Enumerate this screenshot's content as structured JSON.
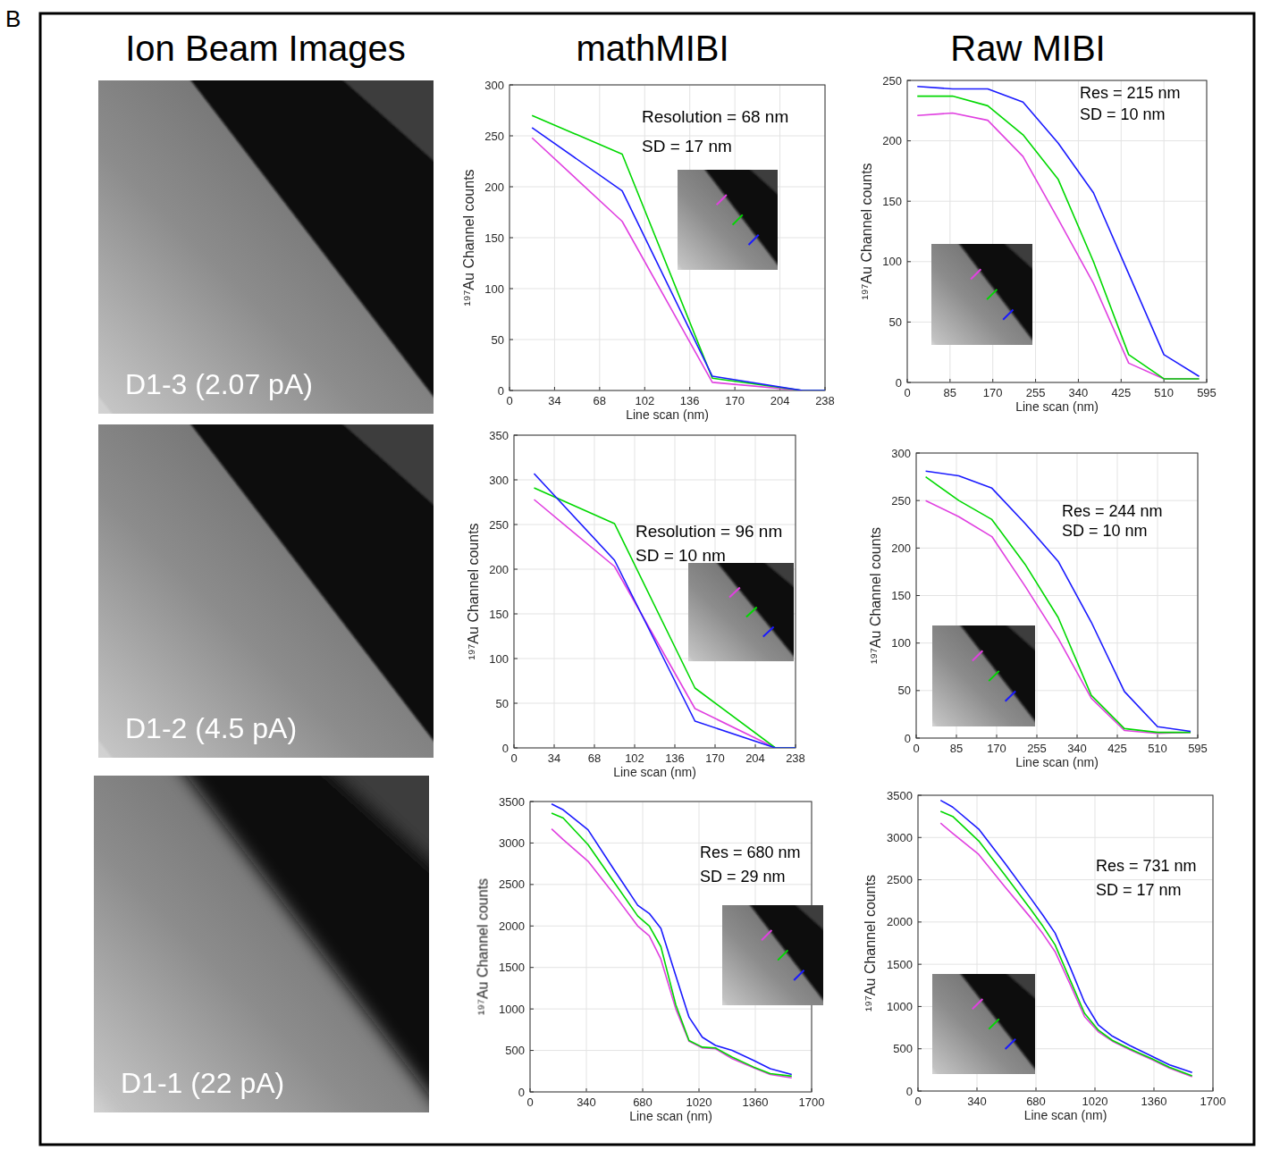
{
  "panel_label": "B",
  "column_titles": [
    "Ion Beam Images",
    "mathMIBI",
    "Raw MIBI"
  ],
  "images": [
    {
      "label": "D1-3 (2.07 pA)"
    },
    {
      "label": "D1-2 (4.5 pA)"
    },
    {
      "label": "D1-1 (22 pA)"
    }
  ],
  "chart_data": [
    {
      "type": "line",
      "x_label": "Line scan (nm)",
      "y_label": "¹⁹⁷Au Channel counts",
      "annotations": [
        "Resolution = 68 nm",
        "SD = 17 nm"
      ],
      "grid": true,
      "xlim": [
        0,
        238
      ],
      "xticks": [
        0,
        34,
        68,
        102,
        136,
        170,
        204,
        238
      ],
      "ylim": [
        0,
        300
      ],
      "yticks": [
        0,
        50,
        100,
        150,
        200,
        250,
        300
      ],
      "x": [
        17,
        85,
        153,
        221,
        238
      ],
      "series": [
        {
          "color": "#e040e0",
          "values": [
            248,
            166,
            8,
            0,
            0
          ]
        },
        {
          "color": "#00d800",
          "values": [
            270,
            232,
            12,
            0,
            0
          ]
        },
        {
          "color": "#1a1aff",
          "values": [
            258,
            196,
            14,
            0,
            0
          ]
        }
      ]
    },
    {
      "type": "line",
      "x_label": "Line scan (nm)",
      "y_label": "¹⁹⁷Au Channel counts",
      "annotations": [
        "Res = 215 nm",
        "SD = 10 nm"
      ],
      "grid": true,
      "xlim": [
        0,
        595
      ],
      "xticks": [
        0,
        85,
        170,
        255,
        340,
        425,
        510,
        595
      ],
      "ylim": [
        0,
        250
      ],
      "yticks": [
        0,
        50,
        100,
        150,
        200,
        250
      ],
      "x": [
        20,
        90,
        160,
        230,
        300,
        370,
        440,
        510,
        580
      ],
      "series": [
        {
          "color": "#e040e0",
          "values": [
            221,
            223,
            217,
            187,
            135,
            82,
            16,
            3,
            3
          ]
        },
        {
          "color": "#00d800",
          "values": [
            237,
            237,
            229,
            205,
            168,
            100,
            23,
            3,
            3
          ]
        },
        {
          "color": "#1a1aff",
          "values": [
            245,
            243,
            243,
            232,
            198,
            157,
            90,
            23,
            5
          ]
        }
      ]
    },
    {
      "type": "line",
      "x_label": "Line scan (nm)",
      "y_label": "¹⁹⁷Au Channel counts",
      "annotations": [
        "Resolution = 96 nm",
        "SD = 10 nm"
      ],
      "grid": true,
      "xlim": [
        0,
        238
      ],
      "xticks": [
        0,
        34,
        68,
        102,
        136,
        170,
        204,
        238
      ],
      "ylim": [
        0,
        350
      ],
      "yticks": [
        0,
        50,
        100,
        150,
        200,
        250,
        300,
        350
      ],
      "x": [
        17,
        85,
        153,
        221,
        238
      ],
      "series": [
        {
          "color": "#e040e0",
          "values": [
            278,
            203,
            44,
            0,
            0
          ]
        },
        {
          "color": "#00d800",
          "values": [
            291,
            251,
            67,
            0,
            0
          ]
        },
        {
          "color": "#1a1aff",
          "values": [
            307,
            210,
            30,
            0,
            0
          ]
        }
      ]
    },
    {
      "type": "line",
      "x_label": "Line scan (nm)",
      "y_label": "¹⁹⁷Au Channel counts",
      "annotations": [
        "Res = 244 nm",
        "SD = 10 nm"
      ],
      "grid": true,
      "xlim": [
        0,
        595
      ],
      "xticks": [
        0,
        85,
        170,
        255,
        340,
        425,
        510,
        595
      ],
      "ylim": [
        0,
        300
      ],
      "yticks": [
        0,
        50,
        100,
        150,
        200,
        250,
        300
      ],
      "x": [
        20,
        90,
        160,
        230,
        300,
        370,
        440,
        510,
        580
      ],
      "series": [
        {
          "color": "#e040e0",
          "values": [
            250,
            233,
            212,
            160,
            105,
            42,
            8,
            5,
            6
          ]
        },
        {
          "color": "#00d800",
          "values": [
            275,
            250,
            230,
            183,
            127,
            45,
            10,
            6,
            6
          ]
        },
        {
          "color": "#1a1aff",
          "values": [
            281,
            276,
            263,
            226,
            186,
            122,
            49,
            12,
            7
          ]
        }
      ]
    },
    {
      "type": "line",
      "x_label": "Line scan (nm)",
      "y_label": "¹⁹⁷Au Channel counts",
      "annotations": [
        "Res = 680 nm",
        "SD = 29 nm"
      ],
      "grid": true,
      "xlim": [
        0,
        1700
      ],
      "xticks": [
        0,
        340,
        680,
        1020,
        1360,
        1700
      ],
      "ylim": [
        0,
        3500
      ],
      "yticks": [
        0,
        500,
        1000,
        1500,
        2000,
        2500,
        3000,
        3500
      ],
      "x": [
        130,
        200,
        350,
        500,
        650,
        720,
        790,
        880,
        960,
        1040,
        1120,
        1220,
        1350,
        1450,
        1580
      ],
      "series": [
        {
          "color": "#e040e0",
          "values": [
            3170,
            3040,
            2780,
            2400,
            2000,
            1880,
            1600,
            1000,
            610,
            530,
            520,
            400,
            290,
            210,
            170
          ]
        },
        {
          "color": "#00d800",
          "values": [
            3360,
            3300,
            2980,
            2550,
            2120,
            2000,
            1750,
            1050,
            620,
            540,
            530,
            420,
            300,
            220,
            190
          ]
        },
        {
          "color": "#1a1aff",
          "values": [
            3470,
            3400,
            3160,
            2700,
            2250,
            2150,
            1970,
            1400,
            900,
            660,
            560,
            500,
            380,
            280,
            210
          ]
        }
      ]
    },
    {
      "type": "line",
      "x_label": "Line scan (nm)",
      "y_label": "¹⁹⁷Au Channel counts",
      "annotations": [
        "Res = 731 nm",
        "SD = 17 nm"
      ],
      "grid": true,
      "xlim": [
        0,
        1700
      ],
      "xticks": [
        0,
        340,
        680,
        1020,
        1360,
        1700
      ],
      "ylim": [
        0,
        3500
      ],
      "yticks": [
        0,
        500,
        1000,
        1500,
        2000,
        2500,
        3000,
        3500
      ],
      "x": [
        130,
        200,
        350,
        500,
        650,
        720,
        790,
        880,
        960,
        1040,
        1120,
        1220,
        1350,
        1450,
        1580
      ],
      "series": [
        {
          "color": "#e040e0",
          "values": [
            3170,
            3050,
            2800,
            2420,
            2050,
            1860,
            1650,
            1250,
            880,
            700,
            590,
            490,
            370,
            270,
            170
          ]
        },
        {
          "color": "#00d800",
          "values": [
            3310,
            3250,
            2960,
            2560,
            2150,
            1950,
            1730,
            1300,
            920,
            720,
            600,
            500,
            380,
            280,
            180
          ]
        },
        {
          "color": "#1a1aff",
          "values": [
            3440,
            3360,
            3100,
            2700,
            2280,
            2080,
            1870,
            1450,
            1050,
            780,
            650,
            540,
            410,
            310,
            220
          ]
        }
      ]
    }
  ]
}
